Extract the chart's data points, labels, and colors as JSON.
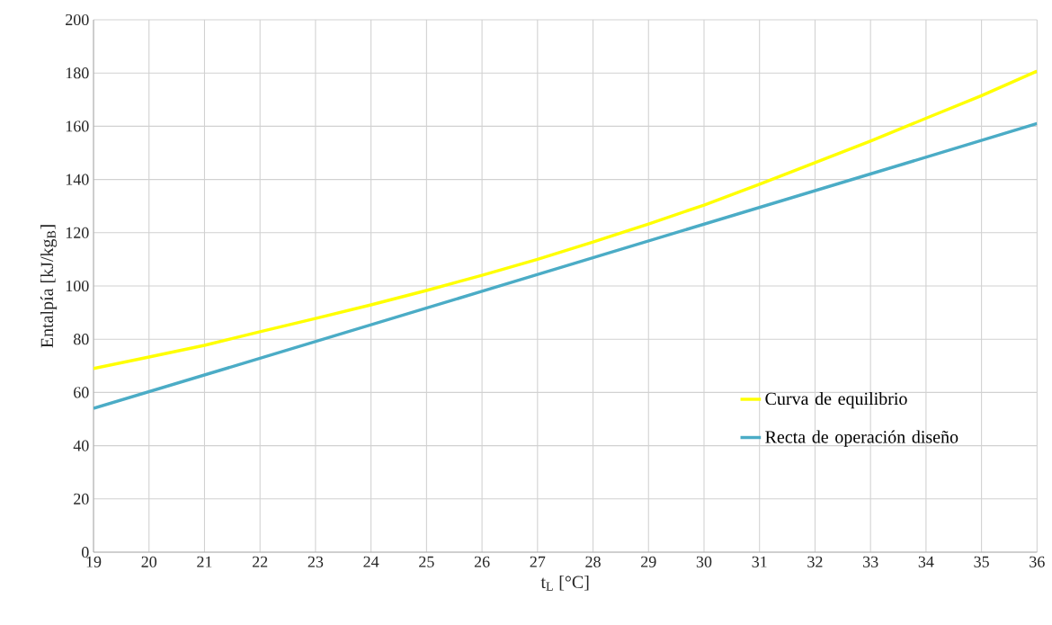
{
  "chart_data": {
    "type": "line",
    "xlabel": "t$_{L}$ [°C]",
    "ylabel": "Entalpía [kJ/kg$_{B}$]",
    "xlim": [
      19,
      36
    ],
    "ylim": [
      0,
      200
    ],
    "xticks": [
      19,
      20,
      21,
      22,
      23,
      24,
      25,
      26,
      27,
      28,
      29,
      30,
      31,
      32,
      33,
      34,
      35,
      36
    ],
    "yticks": [
      0,
      20,
      40,
      60,
      80,
      100,
      120,
      140,
      160,
      180,
      200
    ],
    "grid": true,
    "legend": "bottom right",
    "marker": "none",
    "line_style": "solid",
    "series": [
      {
        "name": "Curva de equilibrio",
        "color": "#ffff00",
        "x": [
          19,
          20,
          21,
          22,
          23,
          24,
          25,
          26,
          27,
          28,
          29,
          30,
          31,
          32,
          33,
          34,
          35,
          36
        ],
        "values": [
          69,
          73.3,
          77.7,
          82.8,
          87.8,
          92.9,
          98.3,
          104,
          110,
          116.5,
          123.3,
          130.4,
          138.2,
          146.3,
          154.4,
          163,
          171.5,
          180.7
        ]
      },
      {
        "name": "Recta de operación diseño",
        "color": "#4bacc6",
        "x": [
          19,
          26,
          36
        ],
        "values": [
          54,
          98,
          161
        ]
      }
    ]
  }
}
